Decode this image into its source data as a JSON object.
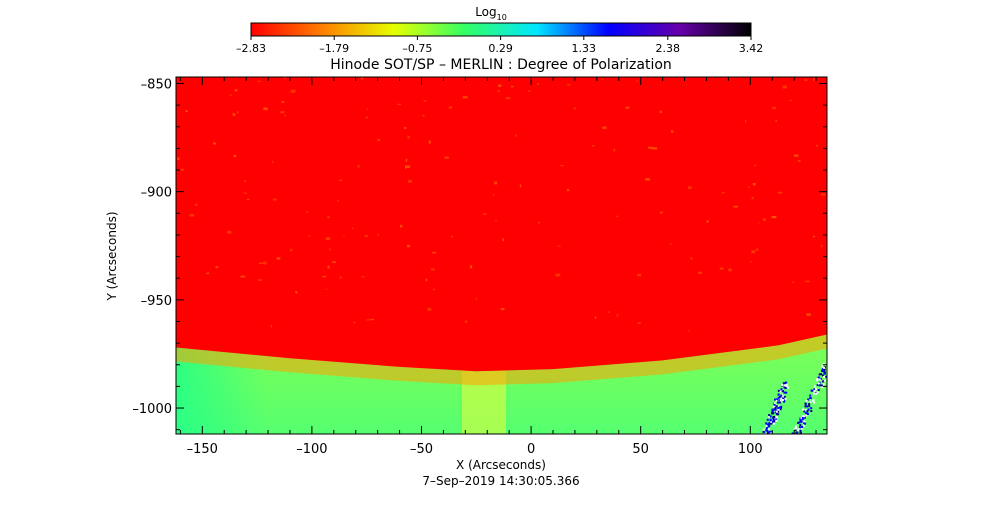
{
  "chart_data": {
    "type": "heatmap",
    "title": "Hinode SOT/SP – MERLIN : Degree of Polarization",
    "xlabel": "X (Arcseconds)",
    "ylabel": "Y (Arcseconds)",
    "footer": "7–Sep–2019 14:30:05.366",
    "xlim": [
      -162,
      135
    ],
    "ylim": [
      -1012,
      -847
    ],
    "x_ticks": [
      -150,
      -100,
      -50,
      0,
      50,
      100
    ],
    "x_tick_labels": [
      "–150",
      "–100",
      "–50",
      "0",
      "50",
      "100"
    ],
    "y_ticks": [
      -850,
      -900,
      -950,
      -1000
    ],
    "y_tick_labels": [
      "–850",
      "–900",
      "–950",
      "–1000"
    ],
    "colorbar": {
      "title_base": "Log",
      "title_sub": "10",
      "range": [
        -2.83,
        3.42
      ],
      "tick_values": [
        -2.83,
        -1.79,
        -0.75,
        0.29,
        1.33,
        2.38,
        3.42
      ],
      "tick_labels": [
        "–2.83",
        "–1.79",
        "–0.75",
        "0.29",
        "1.33",
        "2.38",
        "3.42"
      ],
      "colors": [
        "#ff0000",
        "#ff7f00",
        "#e6ff00",
        "#33ff66",
        "#00e6ff",
        "#0000ff",
        "#6600aa",
        "#000000"
      ]
    },
    "regions": {
      "disk_value": -2.83,
      "limb_value": -0.6,
      "limb_y_at_x": [
        {
          "x": -162,
          "y": -972
        },
        {
          "x": -110,
          "y": -977
        },
        {
          "x": -60,
          "y": -981
        },
        {
          "x": -25,
          "y": -983
        },
        {
          "x": 10,
          "y": -982
        },
        {
          "x": 60,
          "y": -978
        },
        {
          "x": 113,
          "y": -971
        },
        {
          "x": 135,
          "y": -966
        }
      ]
    }
  }
}
